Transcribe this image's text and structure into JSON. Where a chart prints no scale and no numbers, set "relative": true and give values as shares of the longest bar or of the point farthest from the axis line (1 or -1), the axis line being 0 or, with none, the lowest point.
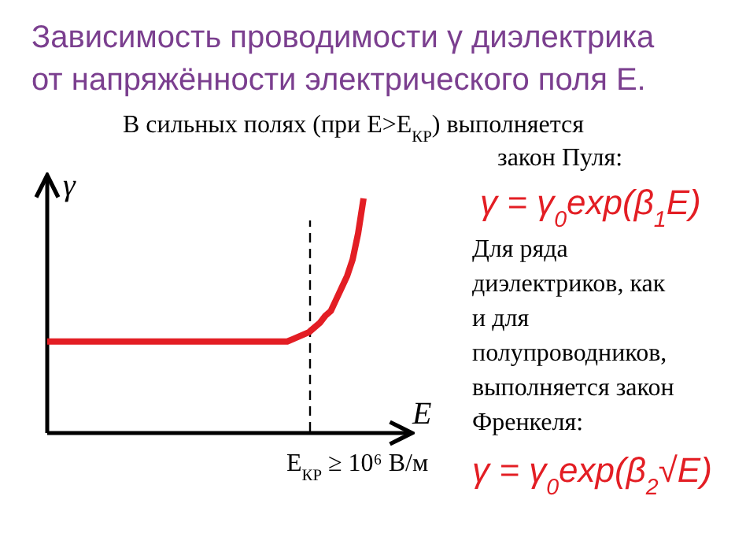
{
  "chart_data": {
    "type": "line",
    "relative": true,
    "title": "Зависимость проводимости γ диэлектрика от напряжённости электрического поля E.",
    "xlabel": "E",
    "ylabel": "γ",
    "line_style": "solid",
    "categories": [
      null,
      null,
      null,
      null,
      null,
      null,
      null,
      null,
      null,
      null,
      null,
      null,
      null,
      null,
      null,
      null,
      null,
      null,
      null,
      null,
      null,
      null,
      null,
      null,
      null,
      null,
      null,
      null,
      null,
      null,
      null,
      null,
      null,
      null,
      null,
      null,
      null,
      null,
      null,
      null,
      null,
      null,
      null,
      null,
      null,
      null,
      null,
      null,
      null,
      null,
      null,
      null,
      null,
      null,
      null,
      null,
      null,
      null,
      null
    ],
    "series": [
      {
        "color": "#e31e24",
        "values": [
          0.39,
          0.39,
          0.39,
          0.39,
          0.39,
          0.39,
          0.39,
          0.39,
          0.39,
          0.39,
          0.39,
          0.39,
          0.39,
          0.39,
          0.39,
          0.39,
          0.39,
          0.39,
          0.39,
          0.39,
          0.39,
          0.39,
          0.39,
          0.39,
          0.39,
          0.39,
          0.39,
          0.39,
          0.39,
          0.39,
          0.39,
          0.39,
          0.39,
          0.39,
          0.39,
          0.39,
          0.39,
          0.39,
          0.39,
          0.39,
          0.39,
          0.39,
          0.39,
          0.39,
          0.39,
          0.4,
          0.41,
          0.42,
          0.43,
          0.45,
          0.47,
          0.5,
          0.52,
          0.57,
          0.62,
          0.67,
          0.74,
          0.85,
          1.0
        ]
      }
    ],
    "annotations": [
      "В сильных полях (при E>E$_{КР}$) выполняется закон Пуля:",
      "γ = γ$_{0}$exp(β$_{1}$E)",
      "Для ряда диэлектриков, как и для полупроводников, выполняется закон Френкеля:",
      "γ = γ$_{0}$exp(β$_{2}$√E)",
      "E$_{КР}$ ≥ 10⁶ В/м"
    ]
  }
}
